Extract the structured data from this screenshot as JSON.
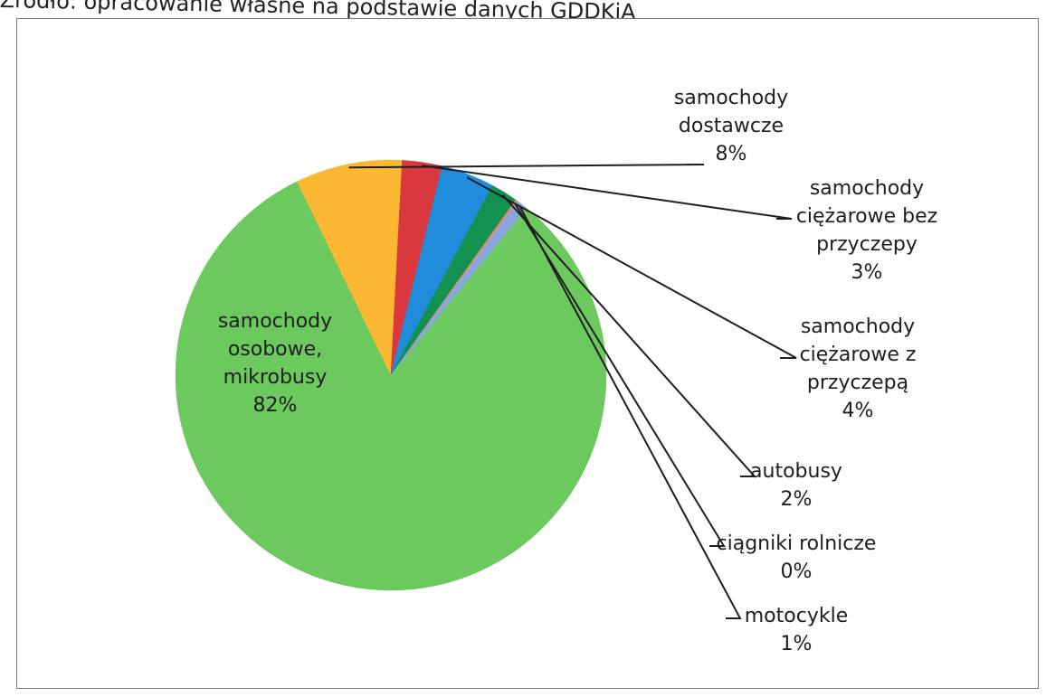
{
  "caption": "Źródło: opracowanie własne na podstawie danych GDDKiA",
  "chart_data": {
    "type": "pie",
    "title": "",
    "slices": [
      {
        "label_lines": [
          "samochody",
          "osobowe,",
          "mikrobusy"
        ],
        "value_label": "82%",
        "value": 82,
        "color": "#6cc95e"
      },
      {
        "label_lines": [
          "samochody",
          "dostawcze"
        ],
        "value_label": "8%",
        "value": 8,
        "color": "#fcb833"
      },
      {
        "label_lines": [
          "samochody",
          "ciężarowe bez",
          "przyczepy"
        ],
        "value_label": "3%",
        "value": 3,
        "color": "#d9383e"
      },
      {
        "label_lines": [
          "samochody",
          "ciężarowe z",
          "przyczepą"
        ],
        "value_label": "4%",
        "value": 4,
        "color": "#1f8ddb"
      },
      {
        "label_lines": [
          "autobusy"
        ],
        "value_label": "2%",
        "value": 2,
        "color": "#139150"
      },
      {
        "label_lines": [
          "ciągniki rolnicze"
        ],
        "value_label": "0%",
        "value": 0.2,
        "color": "#e08a6a"
      },
      {
        "label_lines": [
          "motocykle"
        ],
        "value_label": "1%",
        "value": 0.8,
        "color": "#8aa6df"
      }
    ]
  }
}
